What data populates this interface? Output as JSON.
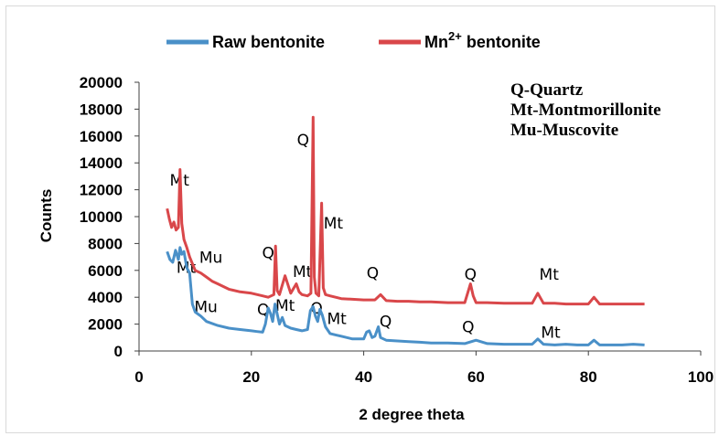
{
  "chart_data": {
    "type": "line",
    "xlabel": "2 degree theta",
    "ylabel": "Counts",
    "xlim": [
      0,
      100
    ],
    "ylim": [
      0,
      20000
    ],
    "xticks": [
      0,
      20,
      40,
      60,
      80,
      100
    ],
    "yticks": [
      0,
      2000,
      4000,
      6000,
      8000,
      10000,
      12000,
      14000,
      16000,
      18000,
      20000
    ],
    "legend_position": "top",
    "series": [
      {
        "name": "Raw bentonite",
        "color": "#4a90c8",
        "x": [
          5,
          5.5,
          6,
          6.5,
          7,
          7.3,
          7.6,
          8,
          8.5,
          9,
          9.5,
          10,
          11,
          12,
          14,
          16,
          18,
          20,
          21,
          22,
          22.5,
          23,
          23.4,
          23.8,
          24.2,
          25,
          25.5,
          26,
          27,
          28,
          29,
          30,
          30.5,
          31,
          31.4,
          31.8,
          32.2,
          32.6,
          33.2,
          34,
          35,
          36,
          38,
          40,
          40.5,
          41,
          41.5,
          42,
          42.6,
          43,
          44,
          46,
          48,
          50,
          52,
          55,
          58,
          60,
          62,
          65,
          68,
          70,
          71,
          72,
          74,
          76,
          78,
          80,
          81,
          82,
          84,
          86,
          88,
          90
        ],
        "values": [
          7400,
          6800,
          6600,
          7500,
          6800,
          7700,
          7200,
          7400,
          6200,
          5800,
          3500,
          2900,
          2600,
          2200,
          1900,
          1700,
          1600,
          1500,
          1450,
          1400,
          2000,
          3200,
          2800,
          2200,
          3500,
          2000,
          2500,
          1900,
          1700,
          1600,
          1500,
          1600,
          3000,
          3300,
          2600,
          2200,
          3100,
          2700,
          1800,
          1300,
          1200,
          1100,
          900,
          900,
          1400,
          1500,
          1000,
          1100,
          1800,
          1000,
          800,
          750,
          700,
          650,
          600,
          600,
          550,
          800,
          550,
          500,
          500,
          500,
          900,
          500,
          450,
          500,
          450,
          450,
          800,
          450,
          450,
          450,
          500,
          450
        ]
      },
      {
        "name": "Mn2+ bentonite",
        "color": "#d9474a",
        "x": [
          5,
          5.4,
          5.8,
          6.2,
          6.6,
          7,
          7.3,
          7.6,
          8,
          8.5,
          9,
          9.5,
          10,
          11,
          12,
          13,
          14,
          16,
          18,
          20,
          22,
          23,
          24,
          24.3,
          24.6,
          25,
          26,
          27,
          28,
          28.5,
          29,
          30,
          30.6,
          31,
          31.2,
          31.5,
          32,
          32.5,
          32.8,
          33.2,
          34,
          35,
          36,
          38,
          40,
          42,
          43,
          44,
          46,
          48,
          50,
          52,
          55,
          58,
          59,
          59.5,
          60,
          62,
          65,
          68,
          70,
          71,
          72,
          74,
          76,
          78,
          80,
          81,
          82,
          84,
          86,
          88,
          90
        ],
        "values": [
          10600,
          9800,
          9200,
          9600,
          9000,
          9200,
          13500,
          9500,
          8300,
          7700,
          7000,
          6500,
          6000,
          5800,
          5500,
          5200,
          5000,
          4600,
          4400,
          4300,
          4100,
          4000,
          4200,
          7800,
          4500,
          4200,
          5600,
          4300,
          5000,
          4400,
          4200,
          4100,
          4300,
          17400,
          5500,
          4300,
          4100,
          11000,
          4700,
          4200,
          4100,
          4000,
          3900,
          3850,
          3800,
          3800,
          4200,
          3750,
          3700,
          3700,
          3650,
          3650,
          3600,
          3600,
          5000,
          4100,
          3600,
          3600,
          3550,
          3550,
          3550,
          4300,
          3550,
          3550,
          3500,
          3500,
          3500,
          4000,
          3500,
          3500,
          3500,
          3500,
          3500
        ]
      }
    ],
    "annotations": [
      {
        "text": "Mt",
        "x": 7.2,
        "y": 12300
      },
      {
        "text": "Mu",
        "x": 12.8,
        "y": 6550
      },
      {
        "text": "Mt",
        "x": 8.4,
        "y": 5800
      },
      {
        "text": "Mu",
        "x": 11.9,
        "y": 2900
      },
      {
        "text": "Q",
        "x": 23.0,
        "y": 6900
      },
      {
        "text": "Q",
        "x": 29.2,
        "y": 15300
      },
      {
        "text": "Mt",
        "x": 34.6,
        "y": 9100
      },
      {
        "text": "Mt",
        "x": 29.1,
        "y": 5500
      },
      {
        "text": "Q",
        "x": 22.1,
        "y": 2700
      },
      {
        "text": "Mt",
        "x": 26.0,
        "y": 3000
      },
      {
        "text": "Q",
        "x": 31.6,
        "y": 2800
      },
      {
        "text": "Mt",
        "x": 35.2,
        "y": 2000
      },
      {
        "text": "Q",
        "x": 41.6,
        "y": 5400
      },
      {
        "text": "Q",
        "x": 43.9,
        "y": 1800
      },
      {
        "text": "Q",
        "x": 59.0,
        "y": 5300
      },
      {
        "text": "Q",
        "x": 58.6,
        "y": 1400
      },
      {
        "text": "Mt",
        "x": 73.0,
        "y": 5300
      },
      {
        "text": "Mt",
        "x": 73.3,
        "y": 1000
      }
    ],
    "key": [
      "Q-Quartz",
      "Mt-Montmorillonite",
      "Mu-Muscovite"
    ]
  }
}
